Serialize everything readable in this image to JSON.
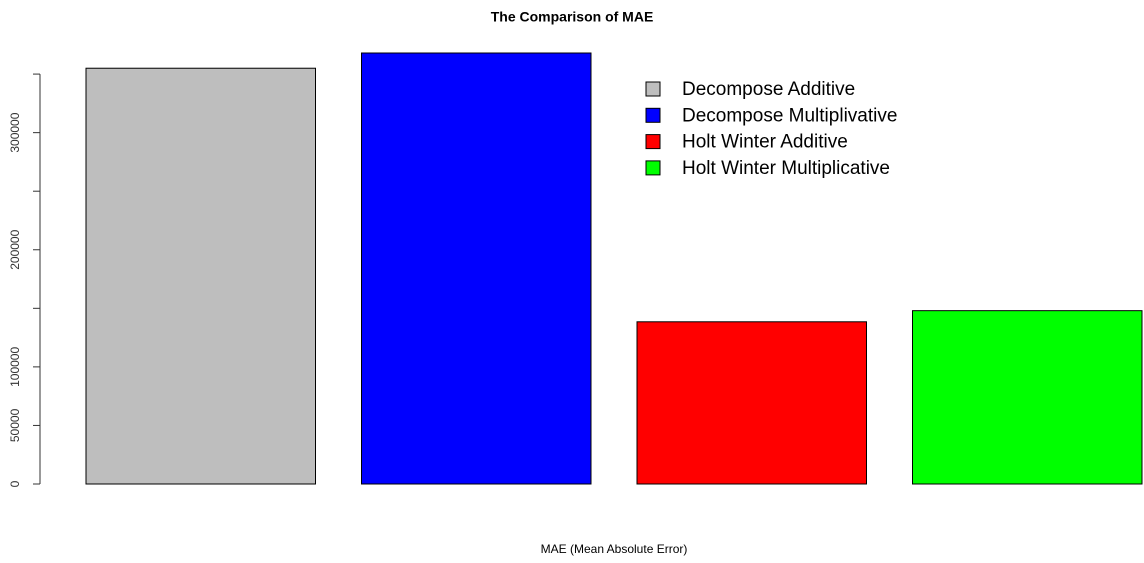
{
  "chart_data": {
    "type": "bar",
    "title": "The Comparison of MAE",
    "x_label": "MAE (Mean Absolute Error)",
    "categories": [
      "Decompose Additive",
      "Decompose Multiplivative",
      "Holt Winter Additive",
      "Holt Winter Multiplicative"
    ],
    "values": [
      355000,
      368000,
      138500,
      148000
    ],
    "colors": [
      "#bebebe",
      "#0000ff",
      "#ff0000",
      "#00ff00"
    ],
    "ylim": [
      0,
      368000
    ],
    "yticks": [
      0,
      50000,
      100000,
      {
        "value": 150000,
        "label": null
      },
      200000,
      {
        "value": 250000,
        "label": null
      },
      300000,
      {
        "value": 350000,
        "label": null
      }
    ],
    "legend": "top-right"
  }
}
